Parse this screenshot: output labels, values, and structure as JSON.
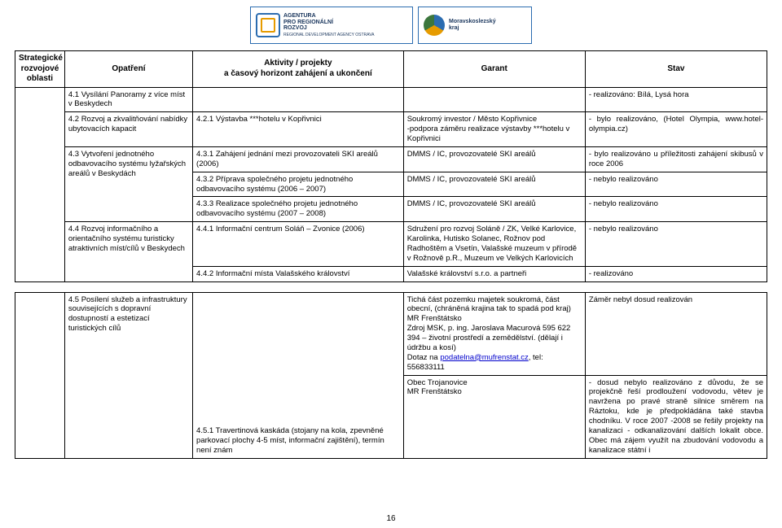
{
  "logos": {
    "arr_text": "AGENTURA\nPRO REGIONÁLNÍ\nROZVOJ",
    "arr_sub": "REGIONAL DEVELOPMENT AGENCY OSTRAVA",
    "msk_text": "Moravskoslezský\nkraj"
  },
  "headers": {
    "h1": "Strategické rozvojové oblasti",
    "h2": "Opatření",
    "h3": "Aktivity / projekty\na časový horizont zahájení a ukončení",
    "h4": "Garant",
    "h5": "Stav"
  },
  "r41_opat": "4.1  Vysílání Panoramy z více míst v Beskydech",
  "r41_stav": "-  realizováno: Bílá, Lysá hora",
  "r42_opat": "4.2  Rozvoj a zkvalitňování nabídky ubytovacích kapacit",
  "r42_akt": "4.2.1  Výstavba ***hotelu v Kopřivnici",
  "r42_gar": "Soukromý investor / Město Kopřivnice\n-podpora záměru realizace výstavby ***hotelu v Kopřivnici",
  "r42_stav": "- bylo realizováno, (Hotel Olympia, www.hotel-olympia.cz)",
  "r43_opat": "4.3  Vytvoření jednotného odbavovacího systému lyžařských areálů v Beskydách",
  "r431_akt": "4.3.1  Zahájení jednání mezi provozovateli SKI areálů (2006)",
  "r431_gar": "DMMS / IC, provozovatelé SKI areálů",
  "r431_stav": "- bylo realizováno u příležitosti zahájení skibusů v roce 2006",
  "r432_akt": "4.3.2  Příprava společného projetu jednotného odbavovacího systému (2006 – 2007)",
  "r432_gar": "DMMS / IC, provozovatelé SKI areálů",
  "r432_stav": "- nebylo realizováno",
  "r433_akt": "4.3.3  Realizace společného projetu jednotného odbavovacího systému (2007 – 2008)",
  "r433_gar": "DMMS / IC, provozovatelé SKI areálů",
  "r433_stav": "- nebylo realizováno",
  "r44_opat": "4.4  Rozvoj informačního a orientačního systému turisticky atraktivních míst/cílů v Beskydech",
  "r441_akt": "4.4.1  Informační centrum Soláň – Zvonice (2006)",
  "r441_gar": "Sdružení pro rozvoj Soláně / ZK, Velké Karlovice, Karolinka, Hutisko Solanec, Rožnov pod Radhoštěm a Vsetín, Valašské muzeum v přírodě v Rožnově p.R.,  Muzeum ve Velkých Karlovicích",
  "r441_stav": "- nebylo realizováno",
  "r442_akt": "4.4.2  Informační místa Valašského království",
  "r442_gar": "Valašské království s.r.o.  a partneři",
  "r442_stav": "-  realizováno",
  "r45_opat": "4.5  Posílení služeb a infrastruktury souvisejících s dopravní dostupností a estetizací turistických cílů",
  "r451_akt": "4.5.1  Travertinová kaskáda (stojany na kola, zpevněné parkovací plochy 4-5 míst, informační zajištění), termín není znám",
  "r45_gar_a_pre": "Tichá část pozemku majetek soukromá, část obecní, (chráněná krajina tak to spadá pod kraj)\nMR Frenštátsko\nZdroj MSK, p. ing. Jaroslava Macurová 595 622 394 – životní prostředí a zemědělství. (dělají i údržbu a kosí)\nDotaz na ",
  "r45_gar_link": "podatelna@mufrenstat.cz",
  "r45_gar_a_post": ", tel: 556833111",
  "r45_stav_a": "Záměr nebyl dosud realizován",
  "r45_gar_b": "Obec Trojanovice\nMR Frenštátsko",
  "r45_stav_b": "- dosud nebylo realizováno z důvodu, že se projekčně řeší prodloužení vodovodu, větev je navržena po pravé straně silnice směrem na Ráztoku, kde je předpokládána také stavba chodníku. V roce 2007 -2008 se řešily projekty na kanalizaci - odkanalizování dalších lokalit obce.  Obec má zájem využít na zbudování vodovodu a kanalizace státní i",
  "page": "16"
}
